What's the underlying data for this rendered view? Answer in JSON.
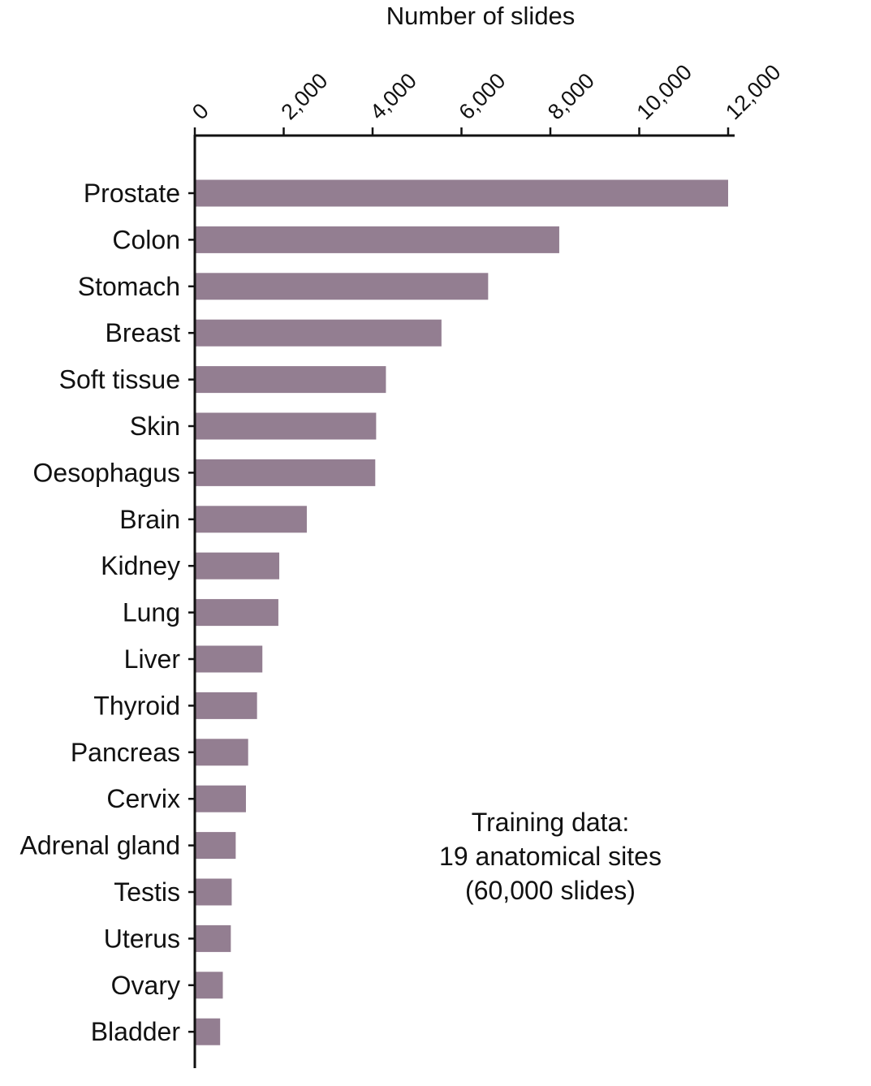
{
  "chart_data": {
    "type": "bar",
    "orientation": "horizontal",
    "xlabel": "Number of slides",
    "xlim": [
      0,
      12000
    ],
    "xticks": [
      0,
      2000,
      4000,
      6000,
      8000,
      10000,
      12000
    ],
    "xtick_labels": [
      "0",
      "2,000",
      "4,000",
      "6,000",
      "8,000",
      "10,000",
      "12,000"
    ],
    "x_axis_position": "top",
    "grid": false,
    "bar_color": "#937E91",
    "categories": [
      "Prostate",
      "Colon",
      "Stomach",
      "Breast",
      "Soft tissue",
      "Skin",
      "Oesophagus",
      "Brain",
      "Kidney",
      "Lung",
      "Liver",
      "Thyroid",
      "Pancreas",
      "Cervix",
      "Adrenal gland",
      "Testis",
      "Uterus",
      "Ovary",
      "Bladder"
    ],
    "values": [
      12000,
      8200,
      6600,
      5550,
      4300,
      4080,
      4060,
      2520,
      1900,
      1880,
      1520,
      1400,
      1200,
      1150,
      920,
      830,
      810,
      630,
      570
    ],
    "annotation": [
      "Training data:",
      "19 anatomical sites",
      "(60,000 slides)"
    ]
  }
}
